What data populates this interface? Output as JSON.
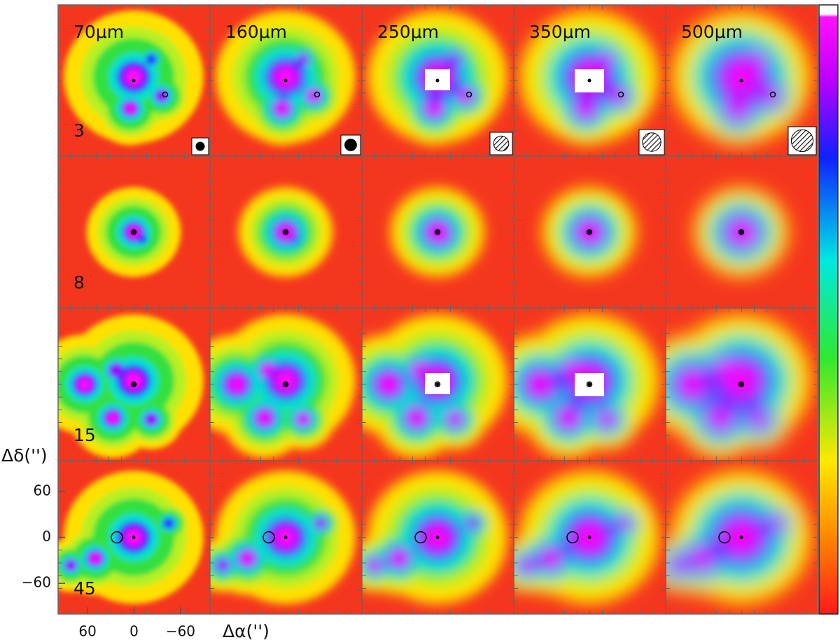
{
  "columns": [
    "70μm",
    "160μm",
    "250μm",
    "350μm",
    "500μm"
  ],
  "rows": [
    "3",
    "8",
    "15",
    "45"
  ],
  "y_axis": {
    "label": "Δδ('')",
    "lim": [
      -100,
      100
    ],
    "ticks": [
      60,
      0,
      {
        "value": -60,
        "label": "−60"
      }
    ]
  },
  "x_axis": {
    "label": "Δα('')",
    "lim": [
      98,
      -98
    ],
    "ticks": [
      60,
      0,
      {
        "value": -60,
        "label": "−60"
      }
    ]
  }
}
